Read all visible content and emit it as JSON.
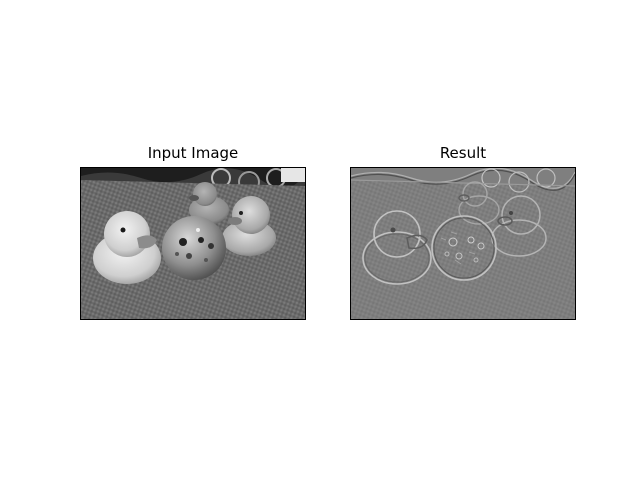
{
  "figure": {
    "panels": [
      {
        "title": "Input Image"
      },
      {
        "title": "Result"
      }
    ]
  },
  "colors": {
    "background": "#ffffff",
    "frame": "#000000",
    "text": "#000000"
  }
}
